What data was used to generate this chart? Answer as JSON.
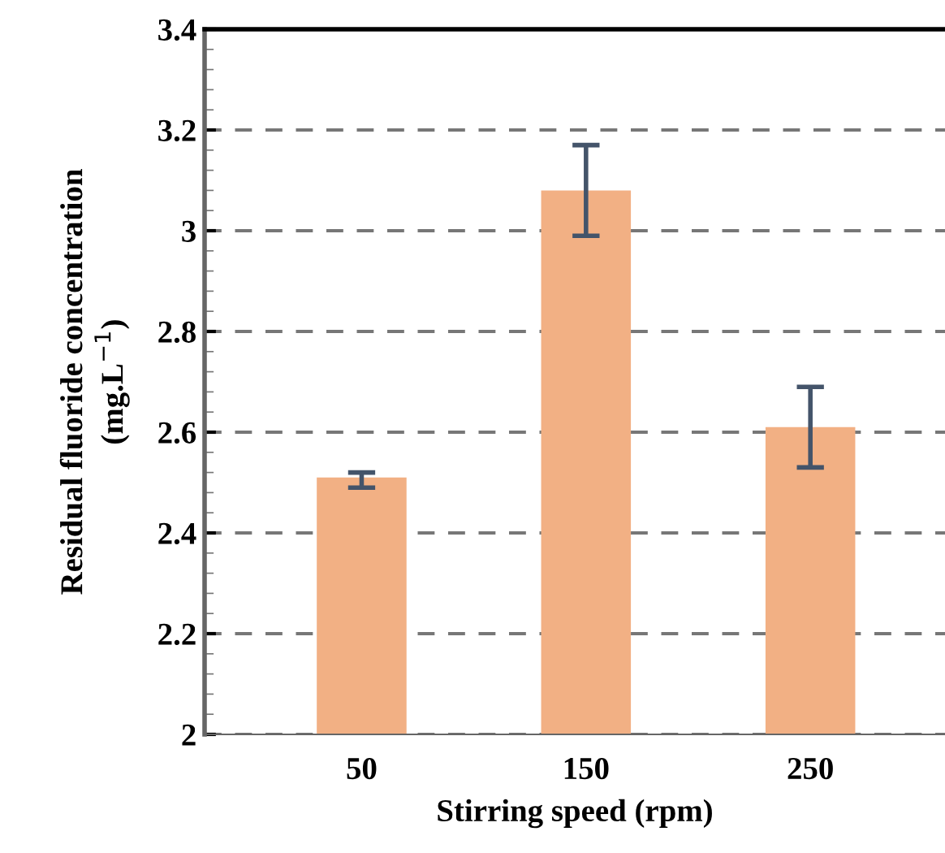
{
  "chart_data": {
    "type": "bar",
    "xlabel": "Stirring speed (rpm)",
    "ylabel": "Residual fluoride concentration\n(mg.L$^{−1}$)",
    "categories": [
      "50",
      "150",
      "250"
    ],
    "values": [
      2.51,
      3.08,
      2.61
    ],
    "errors": [
      [
        2.49,
        2.52
      ],
      [
        2.99,
        3.17
      ],
      [
        2.53,
        2.69
      ]
    ],
    "color": "#f2b084",
    "ylim": [
      2,
      3.4
    ],
    "yticks": [
      2,
      2.2,
      2.4,
      2.6,
      2.8,
      3,
      3.2,
      3.4
    ],
    "grid": "y"
  }
}
